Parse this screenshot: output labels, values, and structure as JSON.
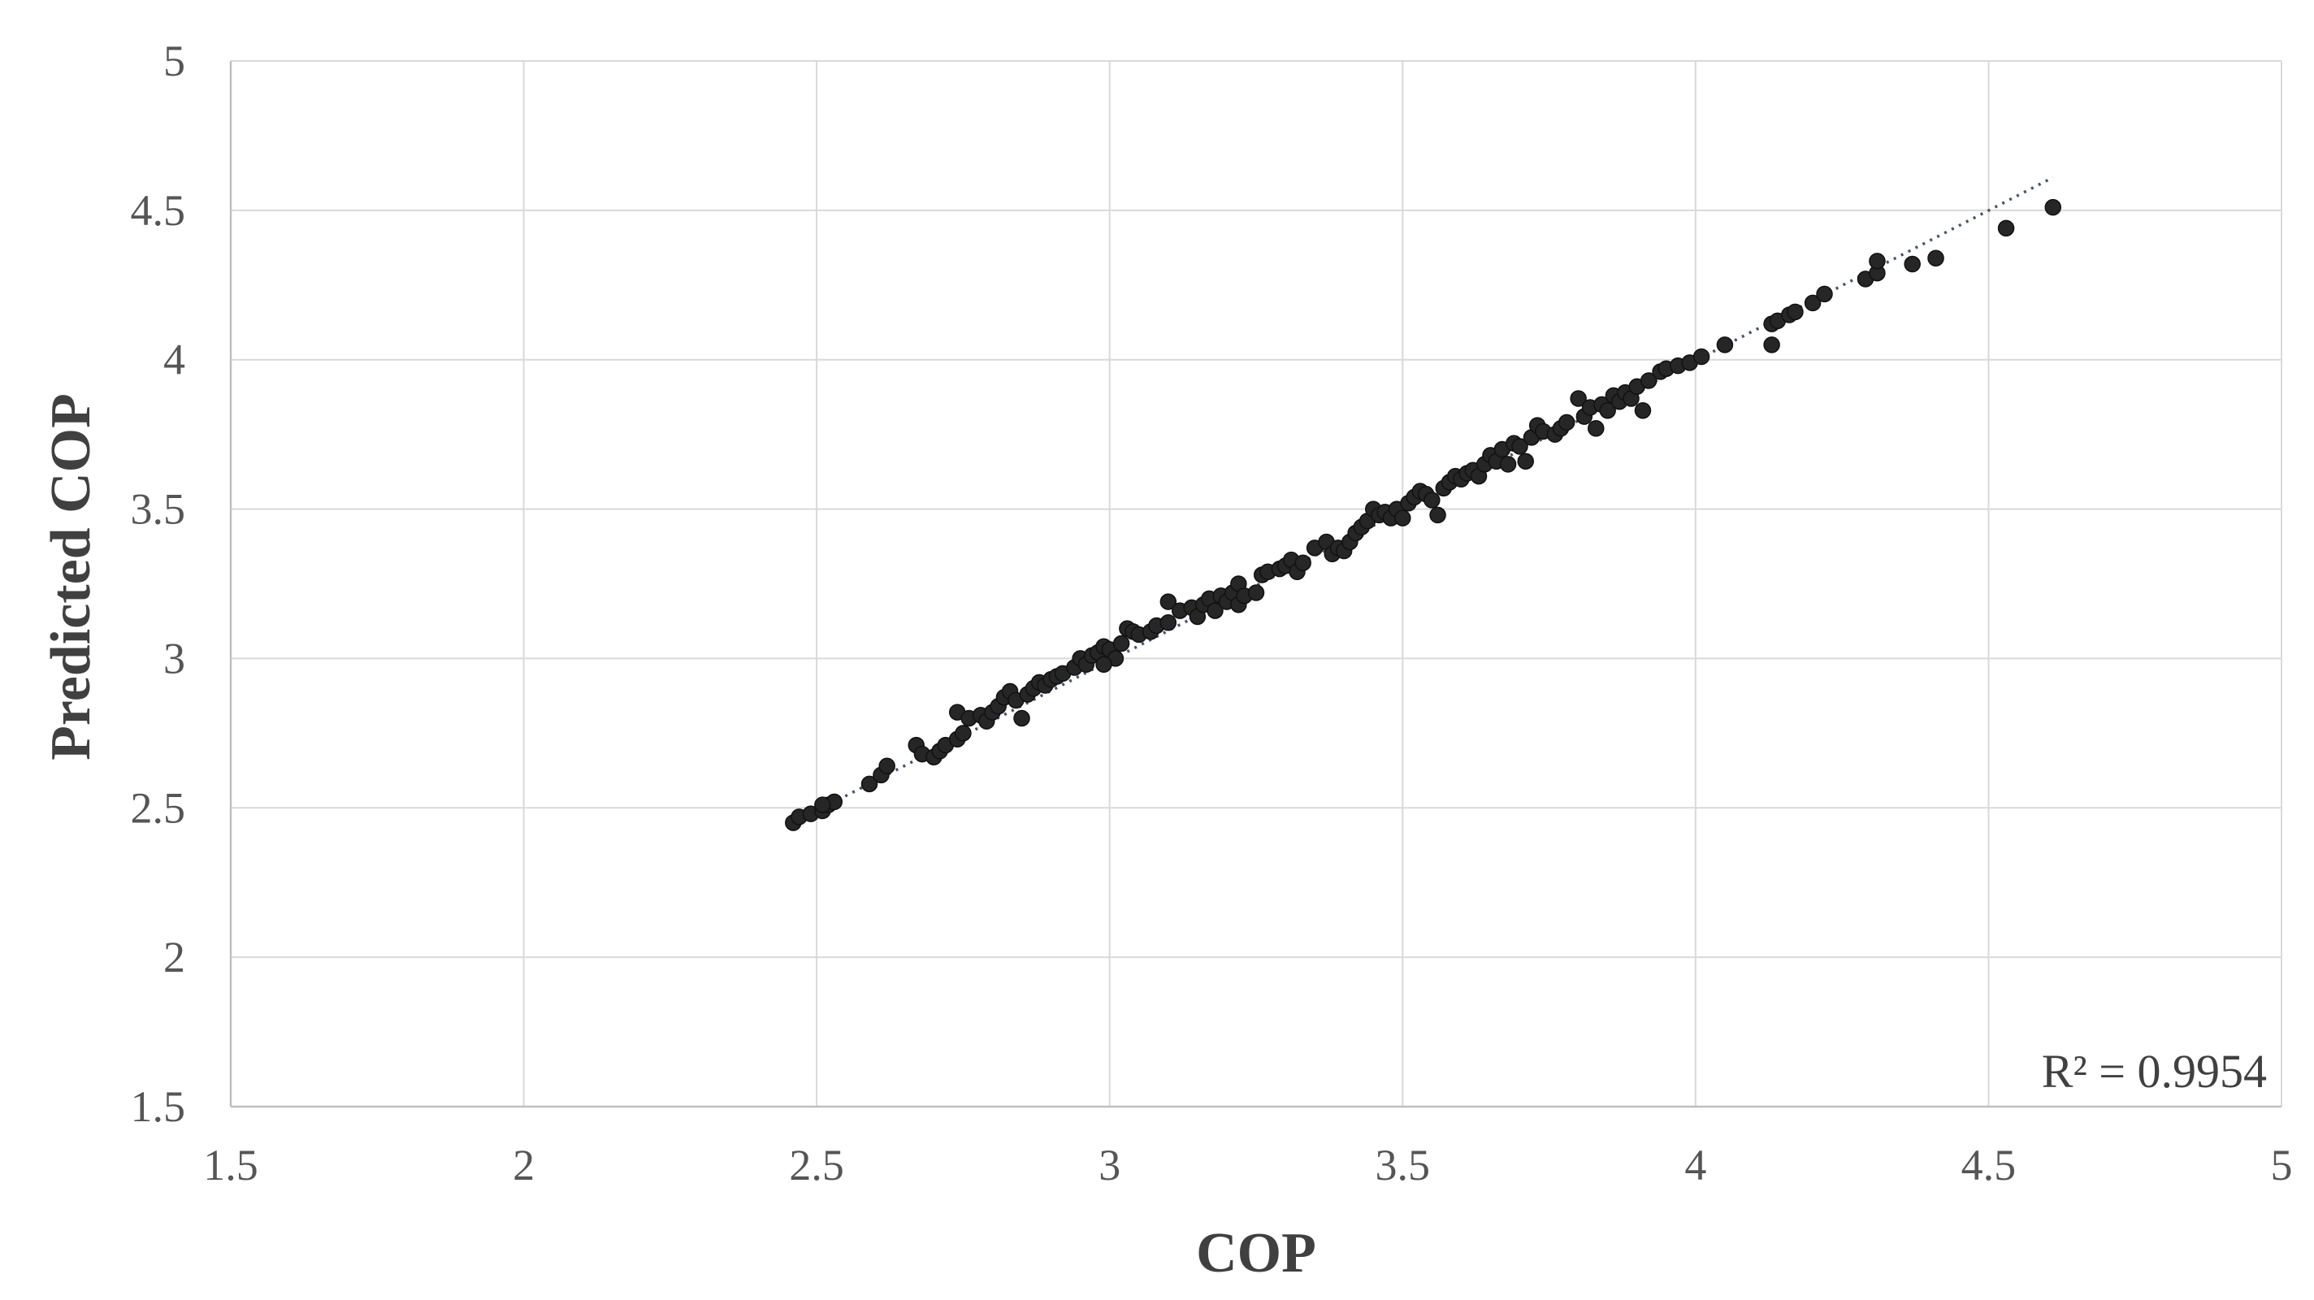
{
  "chart_data": {
    "type": "scatter",
    "title": "",
    "xlabel": "COP",
    "ylabel": "Predicted COP",
    "xlim": [
      1.5,
      5
    ],
    "ylim": [
      1.5,
      5
    ],
    "xticks": [
      "1.5",
      "2",
      "2.5",
      "3",
      "3.5",
      "4",
      "4.5",
      "5"
    ],
    "yticks": [
      "1.5",
      "2",
      "2.5",
      "3",
      "3.5",
      "4",
      "4.5",
      "5"
    ],
    "grid": true,
    "annotation": "R² = 0.9954",
    "marker_color": "#262626",
    "trendline": {
      "style": "dotted",
      "color": "#44546a",
      "x": [
        2.45,
        4.61
      ],
      "y": [
        2.44,
        4.61
      ]
    },
    "series": [
      {
        "points": [
          [
            2.46,
            2.45
          ],
          [
            2.47,
            2.47
          ],
          [
            2.49,
            2.48
          ],
          [
            2.51,
            2.49
          ],
          [
            2.52,
            2.51
          ],
          [
            2.53,
            2.52
          ],
          [
            2.51,
            2.51
          ],
          [
            2.59,
            2.58
          ],
          [
            2.61,
            2.61
          ],
          [
            2.62,
            2.64
          ],
          [
            2.67,
            2.71
          ],
          [
            2.68,
            2.68
          ],
          [
            2.7,
            2.67
          ],
          [
            2.71,
            2.69
          ],
          [
            2.72,
            2.71
          ],
          [
            2.74,
            2.73
          ],
          [
            2.75,
            2.75
          ],
          [
            2.74,
            2.82
          ],
          [
            2.76,
            2.8
          ],
          [
            2.78,
            2.81
          ],
          [
            2.79,
            2.79
          ],
          [
            2.8,
            2.82
          ],
          [
            2.81,
            2.84
          ],
          [
            2.82,
            2.87
          ],
          [
            2.83,
            2.89
          ],
          [
            2.84,
            2.86
          ],
          [
            2.85,
            2.8
          ],
          [
            2.86,
            2.88
          ],
          [
            2.87,
            2.9
          ],
          [
            2.88,
            2.92
          ],
          [
            2.89,
            2.91
          ],
          [
            2.9,
            2.93
          ],
          [
            2.91,
            2.94
          ],
          [
            2.92,
            2.95
          ],
          [
            2.94,
            2.97
          ],
          [
            2.95,
            3.0
          ],
          [
            2.96,
            2.98
          ],
          [
            2.97,
            3.01
          ],
          [
            2.98,
            3.02
          ],
          [
            2.99,
            3.04
          ],
          [
            3.0,
            3.03
          ],
          [
            3.01,
            3.0
          ],
          [
            2.99,
            2.98
          ],
          [
            3.02,
            3.05
          ],
          [
            3.03,
            3.1
          ],
          [
            3.04,
            3.09
          ],
          [
            3.05,
            3.08
          ],
          [
            3.07,
            3.09
          ],
          [
            3.08,
            3.11
          ],
          [
            3.1,
            3.12
          ],
          [
            3.1,
            3.19
          ],
          [
            3.12,
            3.16
          ],
          [
            3.14,
            3.17
          ],
          [
            3.15,
            3.14
          ],
          [
            3.16,
            3.18
          ],
          [
            3.17,
            3.2
          ],
          [
            3.18,
            3.16
          ],
          [
            3.19,
            3.21
          ],
          [
            3.2,
            3.19
          ],
          [
            3.21,
            3.22
          ],
          [
            3.22,
            3.25
          ],
          [
            3.22,
            3.18
          ],
          [
            3.23,
            3.21
          ],
          [
            3.25,
            3.22
          ],
          [
            3.26,
            3.28
          ],
          [
            3.27,
            3.29
          ],
          [
            3.29,
            3.3
          ],
          [
            3.3,
            3.31
          ],
          [
            3.31,
            3.33
          ],
          [
            3.32,
            3.29
          ],
          [
            3.33,
            3.32
          ],
          [
            3.35,
            3.37
          ],
          [
            3.37,
            3.39
          ],
          [
            3.38,
            3.35
          ],
          [
            3.39,
            3.37
          ],
          [
            3.4,
            3.36
          ],
          [
            3.41,
            3.39
          ],
          [
            3.42,
            3.42
          ],
          [
            3.43,
            3.44
          ],
          [
            3.44,
            3.46
          ],
          [
            3.45,
            3.5
          ],
          [
            3.46,
            3.48
          ],
          [
            3.47,
            3.49
          ],
          [
            3.48,
            3.47
          ],
          [
            3.49,
            3.5
          ],
          [
            3.5,
            3.47
          ],
          [
            3.51,
            3.52
          ],
          [
            3.52,
            3.54
          ],
          [
            3.53,
            3.56
          ],
          [
            3.54,
            3.55
          ],
          [
            3.55,
            3.53
          ],
          [
            3.56,
            3.48
          ],
          [
            3.57,
            3.57
          ],
          [
            3.58,
            3.59
          ],
          [
            3.59,
            3.61
          ],
          [
            3.6,
            3.6
          ],
          [
            3.61,
            3.62
          ],
          [
            3.62,
            3.63
          ],
          [
            3.63,
            3.61
          ],
          [
            3.64,
            3.65
          ],
          [
            3.65,
            3.68
          ],
          [
            3.66,
            3.66
          ],
          [
            3.67,
            3.7
          ],
          [
            3.68,
            3.65
          ],
          [
            3.69,
            3.72
          ],
          [
            3.7,
            3.71
          ],
          [
            3.71,
            3.66
          ],
          [
            3.72,
            3.74
          ],
          [
            3.73,
            3.78
          ],
          [
            3.74,
            3.76
          ],
          [
            3.76,
            3.75
          ],
          [
            3.77,
            3.77
          ],
          [
            3.78,
            3.79
          ],
          [
            3.8,
            3.87
          ],
          [
            3.81,
            3.81
          ],
          [
            3.82,
            3.84
          ],
          [
            3.83,
            3.77
          ],
          [
            3.84,
            3.85
          ],
          [
            3.85,
            3.83
          ],
          [
            3.86,
            3.88
          ],
          [
            3.87,
            3.86
          ],
          [
            3.88,
            3.89
          ],
          [
            3.89,
            3.87
          ],
          [
            3.9,
            3.91
          ],
          [
            3.91,
            3.83
          ],
          [
            3.92,
            3.93
          ],
          [
            3.94,
            3.96
          ],
          [
            3.95,
            3.97
          ],
          [
            3.97,
            3.98
          ],
          [
            3.99,
            3.99
          ],
          [
            4.01,
            4.01
          ],
          [
            4.05,
            4.05
          ],
          [
            4.13,
            4.05
          ],
          [
            4.13,
            4.12
          ],
          [
            4.14,
            4.13
          ],
          [
            4.16,
            4.15
          ],
          [
            4.17,
            4.16
          ],
          [
            4.2,
            4.19
          ],
          [
            4.22,
            4.22
          ],
          [
            4.29,
            4.27
          ],
          [
            4.31,
            4.29
          ],
          [
            4.31,
            4.33
          ],
          [
            4.37,
            4.32
          ],
          [
            4.41,
            4.34
          ],
          [
            4.53,
            4.44
          ],
          [
            4.61,
            4.51
          ]
        ]
      }
    ]
  }
}
